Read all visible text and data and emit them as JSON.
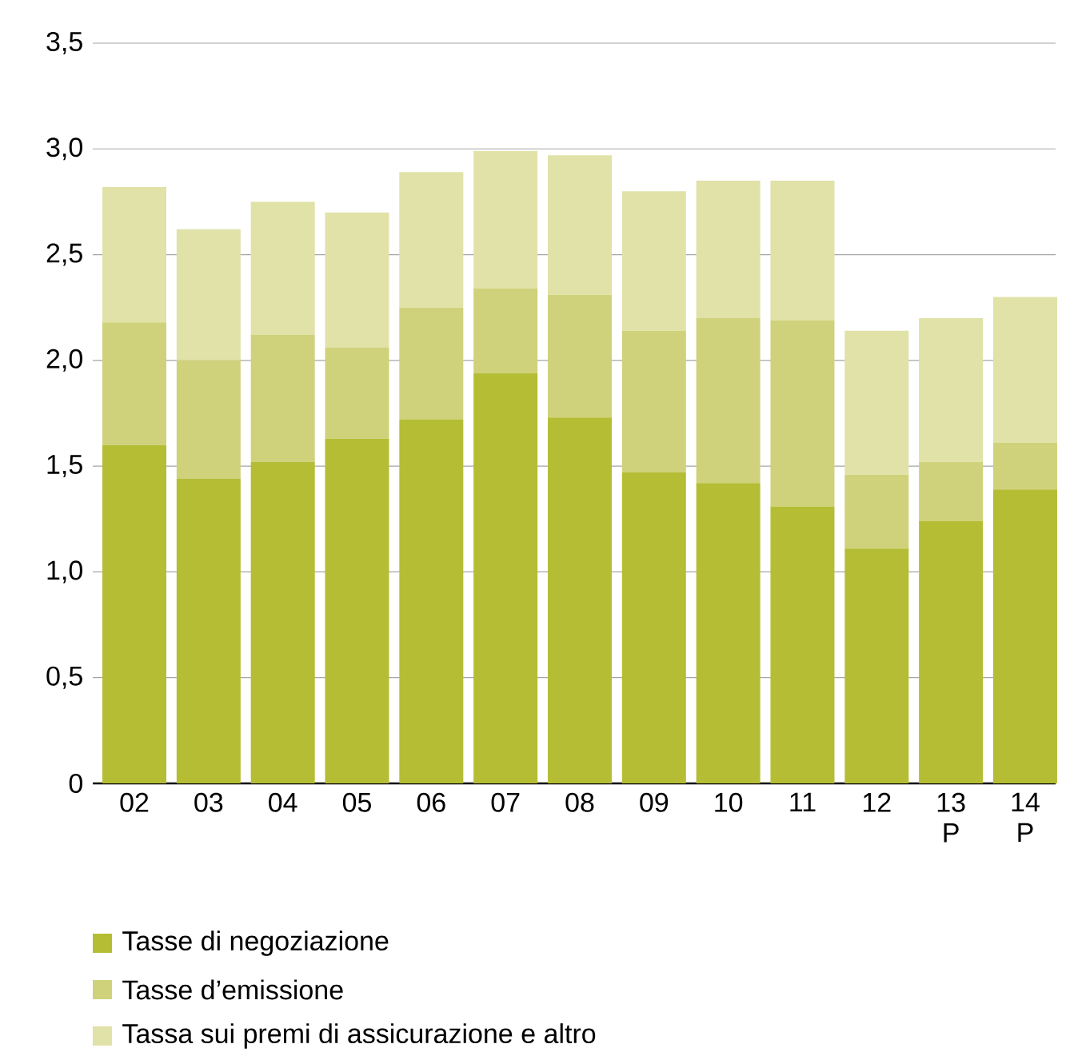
{
  "chart_data": {
    "type": "bar",
    "stacked": true,
    "categories": [
      "02",
      "03",
      "04",
      "05",
      "06",
      "07",
      "08",
      "09",
      "10",
      "11",
      "12",
      "13 P",
      "14 P"
    ],
    "series": [
      {
        "name": "Tasse di negoziazione",
        "color": "#b5bd35",
        "values": [
          1.6,
          1.44,
          1.52,
          1.63,
          1.72,
          1.94,
          1.73,
          1.47,
          1.42,
          1.31,
          1.11,
          1.24,
          1.39
        ]
      },
      {
        "name": "Tasse d’emissione",
        "color": "#cfd27a",
        "values": [
          0.58,
          0.56,
          0.6,
          0.43,
          0.53,
          0.4,
          0.58,
          0.67,
          0.78,
          0.88,
          0.35,
          0.28,
          0.22
        ]
      },
      {
        "name": "Tassa sui premi di assicurazione e altro",
        "color": "#e0e2a8",
        "values": [
          0.64,
          0.62,
          0.63,
          0.64,
          0.64,
          0.65,
          0.66,
          0.66,
          0.65,
          0.66,
          0.68,
          0.68,
          0.69
        ]
      }
    ],
    "ylim": [
      0,
      3.5
    ],
    "yticks": [
      0,
      {
        "value": 0.5,
        "label": "0,5"
      },
      {
        "value": 1,
        "label": "1,0"
      },
      {
        "value": 1.5,
        "label": "1,5"
      },
      {
        "value": 2,
        "label": "2,0"
      },
      {
        "value": 2.5,
        "label": "2,5"
      },
      {
        "value": 3,
        "label": "3,0"
      },
      {
        "value": 3.5,
        "label": "3,5"
      }
    ],
    "grid": "y",
    "legend": "bottom left"
  }
}
